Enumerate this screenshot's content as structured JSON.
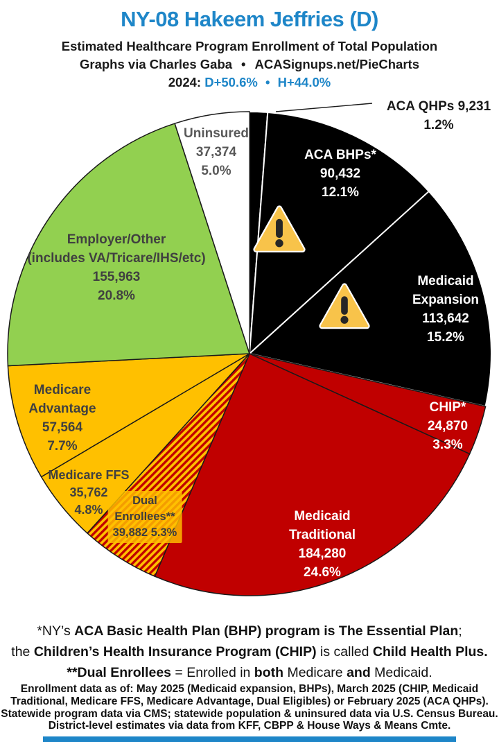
{
  "theme": {
    "accent_blue": "#1E86C8",
    "red": "#C00000",
    "gold": "#FFC000",
    "green": "#92D050",
    "black": "#000000",
    "label_dark_gray": "#404040",
    "label_gray": "#595959"
  },
  "header": {
    "title": "NY-08 Hakeem Jeffries (D)",
    "subtitle": "Estimated Healthcare Program Enrollment of Total Population",
    "credit": "Graphs via Charles Gaba",
    "credit_bullet": "•",
    "site": "ACASignups.net/PieCharts",
    "election_year_label": "2024:",
    "election_dem": "D+50.6%",
    "election_bullet": "•",
    "election_harris": "H+44.0%"
  },
  "chart_data": {
    "type": "pie",
    "title": "Estimated Healthcare Program Enrollment of Total Population",
    "start_angle": "12 o'clock, clockwise",
    "legend_position": "labels on slices",
    "hatch_colors": [
      "#FFC000",
      "#C00000"
    ],
    "slices": [
      {
        "label": "ACA QHPs",
        "label_lines": [
          "ACA QHPs"
        ],
        "value": 9231,
        "value_text": "9,231",
        "pct": 1.2,
        "pct_text": "1.2%",
        "color": "#000000"
      },
      {
        "label": "ACA BHPs*",
        "label_lines": [
          "ACA BHPs*"
        ],
        "value": 90432,
        "value_text": "90,432",
        "pct": 12.1,
        "pct_text": "12.1%",
        "color": "#000000"
      },
      {
        "label": "Medicaid Expansion",
        "label_lines": [
          "Medicaid",
          "Expansion"
        ],
        "value": 113642,
        "value_text": "113,642",
        "pct": 15.2,
        "pct_text": "15.2%",
        "color": "#000000"
      },
      {
        "label": "CHIP*",
        "label_lines": [
          "CHIP*"
        ],
        "value": 24870,
        "value_text": "24,870",
        "pct": 3.3,
        "pct_text": "3.3%",
        "color": "#C00000"
      },
      {
        "label": "Medicaid Traditional",
        "label_lines": [
          "Medicaid",
          "Traditional"
        ],
        "value": 184280,
        "value_text": "184,280",
        "pct": 24.6,
        "pct_text": "24.6%",
        "color": "#C00000"
      },
      {
        "label": "Dual Enrollees**",
        "label_lines": [
          "Dual",
          "Enrollees**"
        ],
        "value": 39882,
        "value_text": "39,882",
        "pct": 5.3,
        "pct_text": "5.3%",
        "color": "hatch"
      },
      {
        "label": "Medicare FFS",
        "label_lines": [
          "Medicare FFS"
        ],
        "value": 35762,
        "value_text": "35,762",
        "pct": 4.8,
        "pct_text": "4.8%",
        "color": "#FFC000"
      },
      {
        "label": "Medicare Advantage",
        "label_lines": [
          "Medicare",
          "Advantage"
        ],
        "value": 57564,
        "value_text": "57,564",
        "pct": 7.7,
        "pct_text": "7.7%",
        "color": "#FFC000"
      },
      {
        "label": "Employer/Other",
        "label_lines": [
          "Employer/Other",
          "(includes VA/Tricare/IHS/etc)"
        ],
        "value": 155963,
        "value_text": "155,963",
        "pct": 20.8,
        "pct_text": "20.8%",
        "color": "#92D050"
      },
      {
        "label": "Uninsured",
        "label_lines": [
          "Uninsured"
        ],
        "value": 37374,
        "value_text": "37,374",
        "pct": 5.0,
        "pct_text": "5.0%",
        "color": "#FFFFFF"
      }
    ]
  },
  "footnotes": {
    "lines": [
      [
        {
          "t": "*NY’s ",
          "b": false
        },
        {
          "t": "ACA Basic Health Plan (BHP) program is The Essential Plan",
          "b": true
        },
        {
          "t": ";",
          "b": false
        }
      ],
      [
        {
          "t": "the ",
          "b": false
        },
        {
          "t": "Children’s Health Insurance Program (CHIP)",
          "b": true
        },
        {
          "t": " is called ",
          "b": false
        },
        {
          "t": "Child Health Plus.",
          "b": true
        }
      ],
      [
        {
          "t": "**Dual Enrollees",
          "b": true
        },
        {
          "t": " = Enrolled in ",
          "b": false
        },
        {
          "t": "both",
          "b": true
        },
        {
          "t": " Medicare ",
          "b": false
        },
        {
          "t": "and",
          "b": true
        },
        {
          "t": " Medicaid.",
          "b": false
        }
      ]
    ]
  },
  "source_note": {
    "line1": "Enrollment data as of: May 2025 (Medicaid expansion, BHPs), March 2025 (CHIP, Medicaid",
    "line2": "Traditional, Medicare FFS, Medicare Advantage, Dual Eligibles) or February 2025 (ACA QHPs).",
    "line3": "Statewide program data via CMS; statewide population & uninsured data via U.S. Census Bureau.",
    "line4": "District-level estimates via data from KFF, CBPP & House Ways & Means Cmte."
  }
}
